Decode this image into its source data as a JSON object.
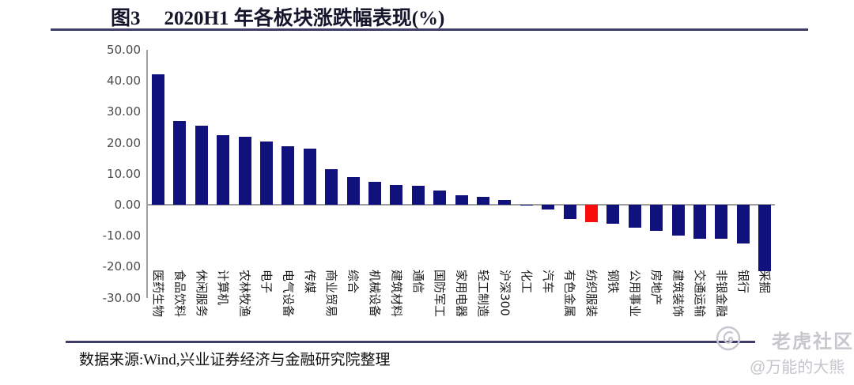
{
  "header": {
    "figure_label": "图3",
    "title": "2020H1 年各板块涨跌幅表现(%)"
  },
  "chart_data": {
    "type": "bar",
    "title": "2020H1 年各板块涨跌幅表现(%)",
    "unit": "%",
    "categories": [
      "医药生物",
      "食品饮料",
      "休闲服务",
      "计算机",
      "农林牧渔",
      "电子",
      "电气设备",
      "传媒",
      "商业贸易",
      "综合",
      "机械设备",
      "建筑材料",
      "通信",
      "国防军工",
      "家用电器",
      "轻工制造",
      "沪深300",
      "化工",
      "汽车",
      "有色金属",
      "纺织服装",
      "钢铁",
      "公用事业",
      "房地产",
      "建筑装饰",
      "交通运输",
      "非银金融",
      "银行",
      "采掘"
    ],
    "values": [
      42.0,
      27.0,
      25.5,
      22.5,
      22.0,
      20.5,
      19.0,
      18.0,
      11.5,
      9.0,
      7.5,
      6.5,
      6.0,
      4.5,
      3.0,
      2.5,
      1.5,
      -0.3,
      -1.5,
      -4.5,
      -5.5,
      -6.0,
      -7.5,
      -8.5,
      -10.0,
      -11.0,
      -11.0,
      -12.5,
      -21.5
    ],
    "highlight_index": 20,
    "highlight_category": "纺织服装",
    "y_ticks": [
      "50.00",
      "40.00",
      "30.00",
      "20.00",
      "10.00",
      "0.00",
      "-10.00",
      "-20.00",
      "-30.00"
    ],
    "ylim": [
      -30,
      50
    ],
    "grid": "off",
    "legend": "none",
    "bar_color": "#11117d",
    "highlight_color": "#f80c0c",
    "axis_color": "#a0a0a0"
  },
  "footer": {
    "source": "数据来源:Wind,兴业证券经济与金融研究院整理"
  },
  "watermark": {
    "logo_icon": "tiger-circle-icon",
    "community": "老虎社区",
    "author": "@万能的大熊",
    "color": "#c7c7cd"
  }
}
